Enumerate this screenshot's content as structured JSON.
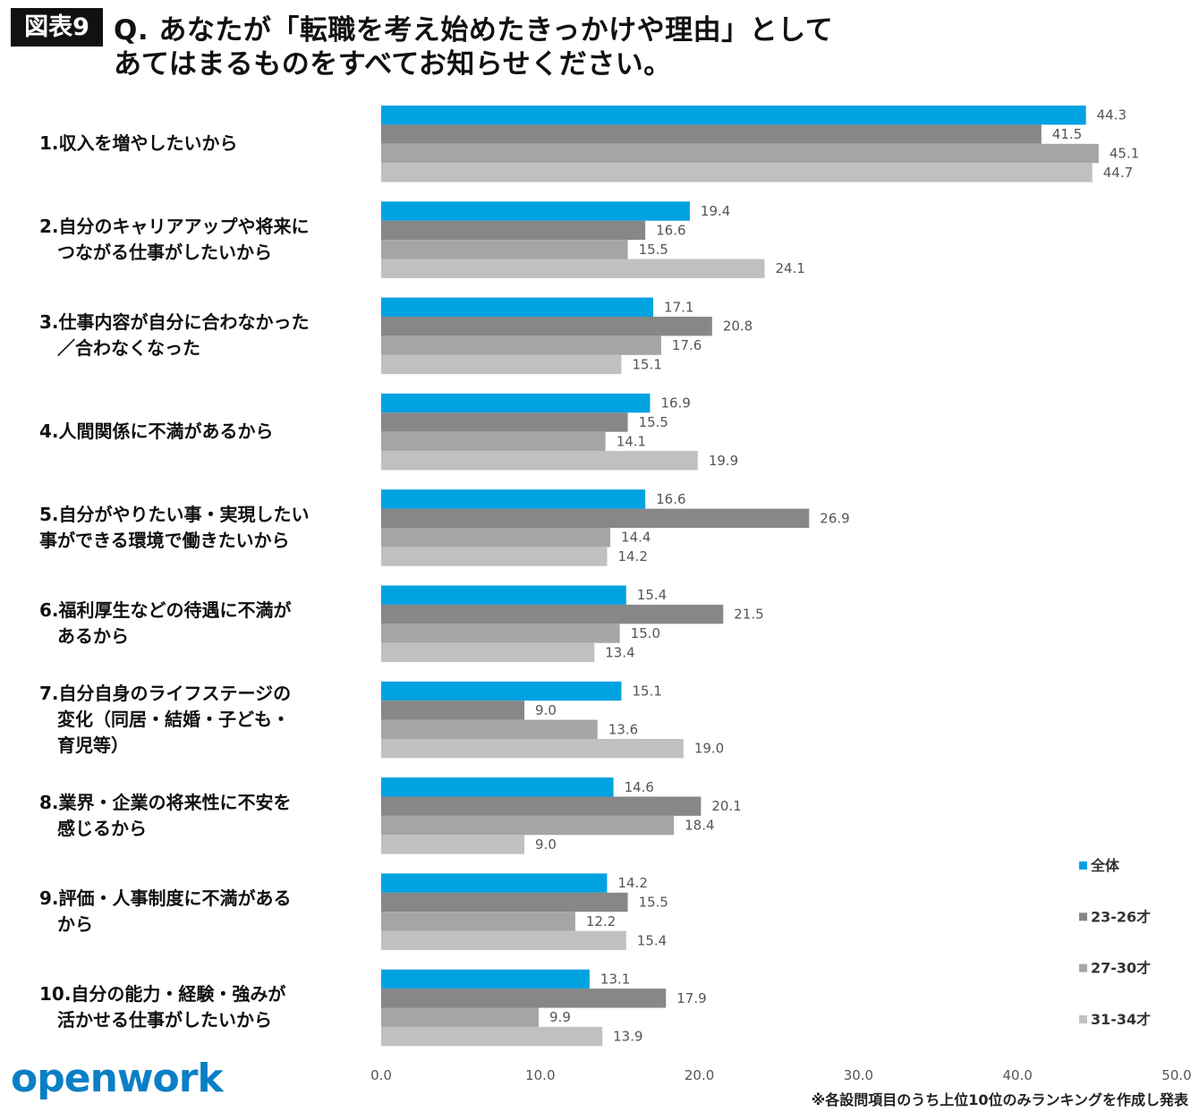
{
  "header": {
    "badge": "図表9",
    "title_line1": "Q. あなたが「転職を考え始めたきっかけや理由」として",
    "title_line2": "あてはまるものをすべてお知らせください。"
  },
  "footnote": "※各設問項目のうち上位10位のみランキングを作成し発表",
  "logo": "openwork",
  "chart_data": {
    "type": "bar",
    "orientation": "horizontal",
    "categories": [
      "1.収入を増やしたいから",
      "2.自分のキャリアアップや将来に\n　つながる仕事がしたいから",
      "3.仕事内容が自分に合わなかった\n　／合わなくなった",
      "4.人間関係に不満があるから",
      "5.自分がやりたい事・実現したい\n事ができる環境で働きたいから",
      "6.福利厚生などの待遇に不満が\n　あるから",
      "7.自分自身のライフステージの\n　変化（同居・結婚・子ども・\n　育児等）",
      "8.業界・企業の将来性に不安を\n　感じるから",
      "9.評価・人事制度に不満がある\n　から",
      "10.自分の能力・経験・強みが\n　活かせる仕事がしたいから"
    ],
    "series": [
      {
        "name": "全体",
        "color": "#00a2e0",
        "values": [
          44.3,
          19.4,
          17.1,
          16.9,
          16.6,
          15.4,
          15.1,
          14.6,
          14.2,
          13.1
        ]
      },
      {
        "name": "23-26才",
        "color": "#878787",
        "values": [
          41.5,
          16.6,
          20.8,
          15.5,
          26.9,
          21.5,
          9.0,
          20.1,
          15.5,
          17.9
        ]
      },
      {
        "name": "27-30才",
        "color": "#a5a5a5",
        "values": [
          45.1,
          15.5,
          17.6,
          14.1,
          14.4,
          15.0,
          13.6,
          18.4,
          12.2,
          9.9
        ]
      },
      {
        "name": "31-34才",
        "color": "#c0c0c0",
        "values": [
          44.7,
          24.1,
          15.1,
          19.9,
          14.2,
          13.4,
          19.0,
          9.0,
          15.4,
          13.9
        ]
      }
    ],
    "xlim": [
      0,
      50
    ],
    "xticks": [
      "0.0",
      "10.0",
      "20.0",
      "30.0",
      "40.0",
      "50.0"
    ],
    "grid": false,
    "legend": "bottom-right"
  }
}
